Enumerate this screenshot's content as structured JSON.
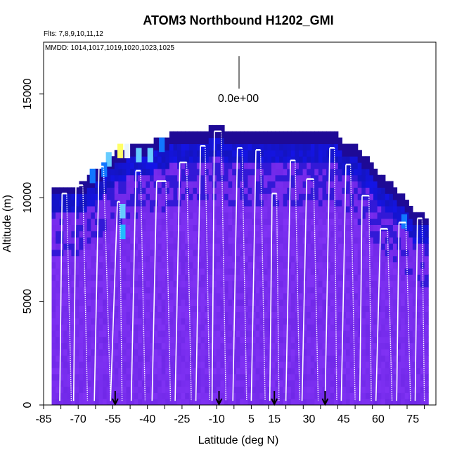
{
  "chart_data": {
    "type": "heatmap",
    "title": "ATOM3 Northbound H1202_GMI",
    "subtitle_flights": "Flts: 7,8,9,10,11,12",
    "subtitle_dates": "MMDD: 1014,1017,1019,1020,1023,1025",
    "xlabel": "Latitude (deg N)",
    "ylabel": "Altitude (m)",
    "xlim": [
      -85,
      85
    ],
    "ylim": [
      0,
      17500
    ],
    "x_ticks": [
      -85,
      -70,
      -55,
      -40,
      -25,
      -10,
      5,
      15,
      30,
      45,
      60,
      75
    ],
    "y_ticks": [
      0,
      5000,
      10000,
      15000
    ],
    "colorbar_label": "0.0e+00",
    "colorbar_value": 0.0,
    "arrow_markers_lat": [
      -54,
      -9,
      15,
      37
    ],
    "ceiling_profile": [
      [
        -80,
        10500
      ],
      [
        -75,
        10500
      ],
      [
        -70,
        10500
      ],
      [
        -65,
        11000
      ],
      [
        -60,
        11500
      ],
      [
        -55,
        12000
      ],
      [
        -50,
        12300
      ],
      [
        -45,
        12500
      ],
      [
        -40,
        12500
      ],
      [
        -35,
        12700
      ],
      [
        -30,
        13000
      ],
      [
        -25,
        13000
      ],
      [
        -20,
        13000
      ],
      [
        -15,
        13200
      ],
      [
        -10,
        13400
      ],
      [
        -5,
        13000
      ],
      [
        0,
        13000
      ],
      [
        5,
        13000
      ],
      [
        10,
        13000
      ],
      [
        15,
        13000
      ],
      [
        20,
        13000
      ],
      [
        25,
        13000
      ],
      [
        30,
        13000
      ],
      [
        35,
        13000
      ],
      [
        40,
        13000
      ],
      [
        45,
        12500
      ],
      [
        50,
        12300
      ],
      [
        55,
        11700
      ],
      [
        60,
        11000
      ],
      [
        65,
        10500
      ],
      [
        70,
        10000
      ],
      [
        75,
        9200
      ],
      [
        80,
        9000
      ]
    ],
    "bright_cells": [
      {
        "lat": -53,
        "alt": 11900,
        "level": "yellow"
      },
      {
        "lat": -50,
        "alt": 11900,
        "level": "pale"
      },
      {
        "lat": -45,
        "alt": 11700,
        "level": "light-blue"
      },
      {
        "lat": -40,
        "alt": 11700,
        "level": "light-blue"
      },
      {
        "lat": -58,
        "alt": 11500,
        "level": "light-blue"
      },
      {
        "lat": -60,
        "alt": 11000,
        "level": "blue"
      },
      {
        "lat": -65,
        "alt": 10700,
        "level": "blue"
      },
      {
        "lat": -52,
        "alt": 9000,
        "level": "light-blue"
      },
      {
        "lat": -52,
        "alt": 8000,
        "level": "cyan"
      },
      {
        "lat": -35,
        "alt": 12200,
        "level": "blue"
      },
      {
        "lat": 70,
        "alt": 8500,
        "level": "blue"
      }
    ],
    "flight_profiles": [
      {
        "ascent_lat": [
          -78,
          -77
        ],
        "top": 10200,
        "cruise_to": -75,
        "descend_to": -73
      },
      {
        "ascent_lat": [
          -72,
          -71
        ],
        "top": 10600,
        "cruise_to": -68,
        "descend_to": -66
      },
      {
        "ascent_lat": [
          -63,
          -61
        ],
        "top": 11500,
        "cruise_to": -59,
        "descend_to": -56
      },
      {
        "ascent_lat": [
          -56,
          -53
        ],
        "top": 9800,
        "cruise_to": -52,
        "descend_to": -51
      },
      {
        "ascent_lat": [
          -47,
          -45
        ],
        "top": 11300,
        "cruise_to": -43,
        "descend_to": -41
      },
      {
        "ascent_lat": [
          -38,
          -36
        ],
        "top": 10800,
        "cruise_to": -32,
        "descend_to": -30
      },
      {
        "ascent_lat": [
          -28,
          -26
        ],
        "top": 11700,
        "cruise_to": -23,
        "descend_to": -21
      },
      {
        "ascent_lat": [
          -19,
          -17
        ],
        "top": 12500,
        "cruise_to": -15,
        "descend_to": -13
      },
      {
        "ascent_lat": [
          -12,
          -11
        ],
        "top": 13200,
        "cruise_to": -8,
        "descend_to": -6
      },
      {
        "ascent_lat": [
          -3,
          -1
        ],
        "top": 12400,
        "cruise_to": 1,
        "descend_to": 3
      },
      {
        "ascent_lat": [
          5,
          7
        ],
        "top": 12300,
        "cruise_to": 9,
        "descend_to": 11
      },
      {
        "ascent_lat": [
          13,
          14
        ],
        "top": 10200,
        "cruise_to": 16,
        "descend_to": 17
      },
      {
        "ascent_lat": [
          20,
          22
        ],
        "top": 11800,
        "cruise_to": 24,
        "descend_to": 26
      },
      {
        "ascent_lat": [
          27,
          29
        ],
        "top": 10900,
        "cruise_to": 32,
        "descend_to": 34
      },
      {
        "ascent_lat": [
          37,
          39
        ],
        "top": 12400,
        "cruise_to": 41,
        "descend_to": 42
      },
      {
        "ascent_lat": [
          44,
          46
        ],
        "top": 11600,
        "cruise_to": 48,
        "descend_to": 50
      },
      {
        "ascent_lat": [
          52,
          53
        ],
        "top": 10100,
        "cruise_to": 56,
        "descend_to": 57
      },
      {
        "ascent_lat": [
          59,
          61
        ],
        "top": 8500,
        "cruise_to": 64,
        "descend_to": 66
      },
      {
        "ascent_lat": [
          68,
          69
        ],
        "top": 8800,
        "cruise_to": 72,
        "descend_to": 74
      },
      {
        "ascent_lat": [
          76,
          77
        ],
        "top": 9000,
        "cruise_to": 79,
        "descend_to": 80
      }
    ]
  }
}
